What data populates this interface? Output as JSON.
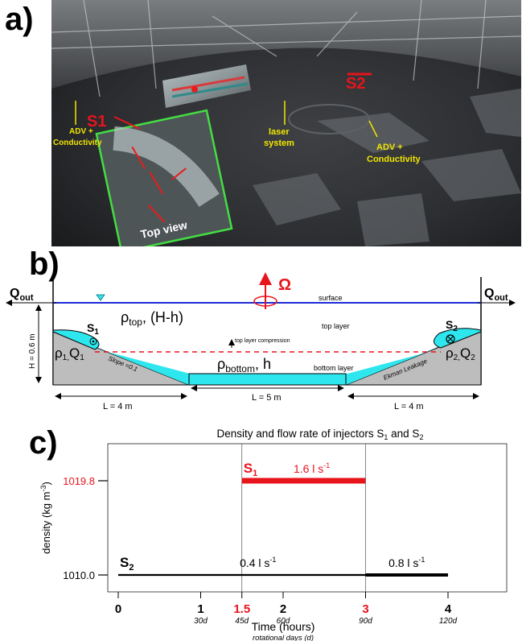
{
  "panel_a": {
    "label": "a)",
    "s1": "S1",
    "s2": "S2",
    "adv_left_line1": "ADV +",
    "adv_left_line2": "Conductivity",
    "laser_line1": "laser",
    "laser_line2": "system",
    "adv_right_line1": "ADV +",
    "adv_right_line2": "Conductivity",
    "top_view": "Top view"
  },
  "panel_b": {
    "label": "b)",
    "q_out": "Q",
    "q_out_sub": "out",
    "omega": "Ω",
    "surface": "surface",
    "rho_top": "ρ",
    "rho_top_sub": "top",
    "rho_top_rest": ", (H-h)",
    "top_layer": "top layer",
    "compression": "top layer compression",
    "rho_bottom": "ρ",
    "rho_bottom_sub": "bottom",
    "rho_bottom_rest": ",  h",
    "bottom_layer": "bottom layer",
    "s1": "S",
    "s1_sub": "1",
    "s2": "S",
    "s2_sub": "2",
    "rho1": "ρ",
    "rho1_sub": "1,",
    "q1": "Q",
    "q1_sub": "1",
    "rho2": "ρ",
    "rho2_sub": "2,",
    "q2": "Q",
    "q2_sub": "2",
    "slope": "Slope =0.1",
    "ekman": "Ekman Leakage",
    "height": "H = 0.6 m",
    "l_left": "L = 4 m",
    "l_mid": "L = 5 m",
    "l_right": "L = 4 m"
  },
  "panel_c": {
    "label": "c)",
    "title_main": "Density and flow rate of injectors S",
    "title_sub1": "1",
    "title_and": " and S",
    "title_sub2": "2",
    "ylabel": "density (kg m",
    "ylabel_sup": "-3",
    "ylabel_end": ")",
    "xlabel": "Time (hours)",
    "xlabel2": "rotational days (d)",
    "s1_label": "S",
    "s1_sub": "1",
    "s2_label": "S",
    "s2_sub": "2",
    "s1_rate": "1.6 l s",
    "s2_rate_a": "0.4 l s",
    "s2_rate_b": "0.8 l s",
    "rate_sup": "-1",
    "colors": {
      "s1": "#e8141c",
      "s2": "#000000",
      "highlight": "#e8141c"
    }
  },
  "chart_data": {
    "type": "line",
    "title": "Density and flow rate of injectors S1 and S2",
    "xlabel": "Time (hours)",
    "ylabel": "density (kg m-3)",
    "xlim": [
      0,
      4
    ],
    "x_ticks": [
      {
        "value": 0,
        "label": "0",
        "sub": "",
        "highlight": false
      },
      {
        "value": 1,
        "label": "1",
        "sub": "30d",
        "highlight": false
      },
      {
        "value": 1.5,
        "label": "1.5",
        "sub": "45d",
        "highlight": true
      },
      {
        "value": 2,
        "label": "2",
        "sub": "60d",
        "highlight": false
      },
      {
        "value": 3,
        "label": "3",
        "sub": "90d",
        "highlight": true
      },
      {
        "value": 4,
        "label": "4",
        "sub": "120d",
        "highlight": false
      }
    ],
    "y_ticks": [
      {
        "value": 1010.0,
        "label": "1010.0",
        "color": "#000000"
      },
      {
        "value": 1019.8,
        "label": "1019.8",
        "color": "#e8141c"
      }
    ],
    "vlines": [
      1.5,
      3
    ],
    "series": [
      {
        "name": "S1",
        "color": "#e8141c",
        "segments": [
          {
            "x0": 1.5,
            "x1": 3,
            "y": 1019.8,
            "rate": "1.6 l s-1"
          }
        ]
      },
      {
        "name": "S2",
        "color": "#000000",
        "segments": [
          {
            "x0": 0,
            "x1": 3,
            "y": 1010.0,
            "rate": "0.4 l s-1"
          },
          {
            "x0": 3,
            "x1": 4,
            "y": 1010.0,
            "rate": "0.8 l s-1"
          }
        ]
      }
    ]
  }
}
